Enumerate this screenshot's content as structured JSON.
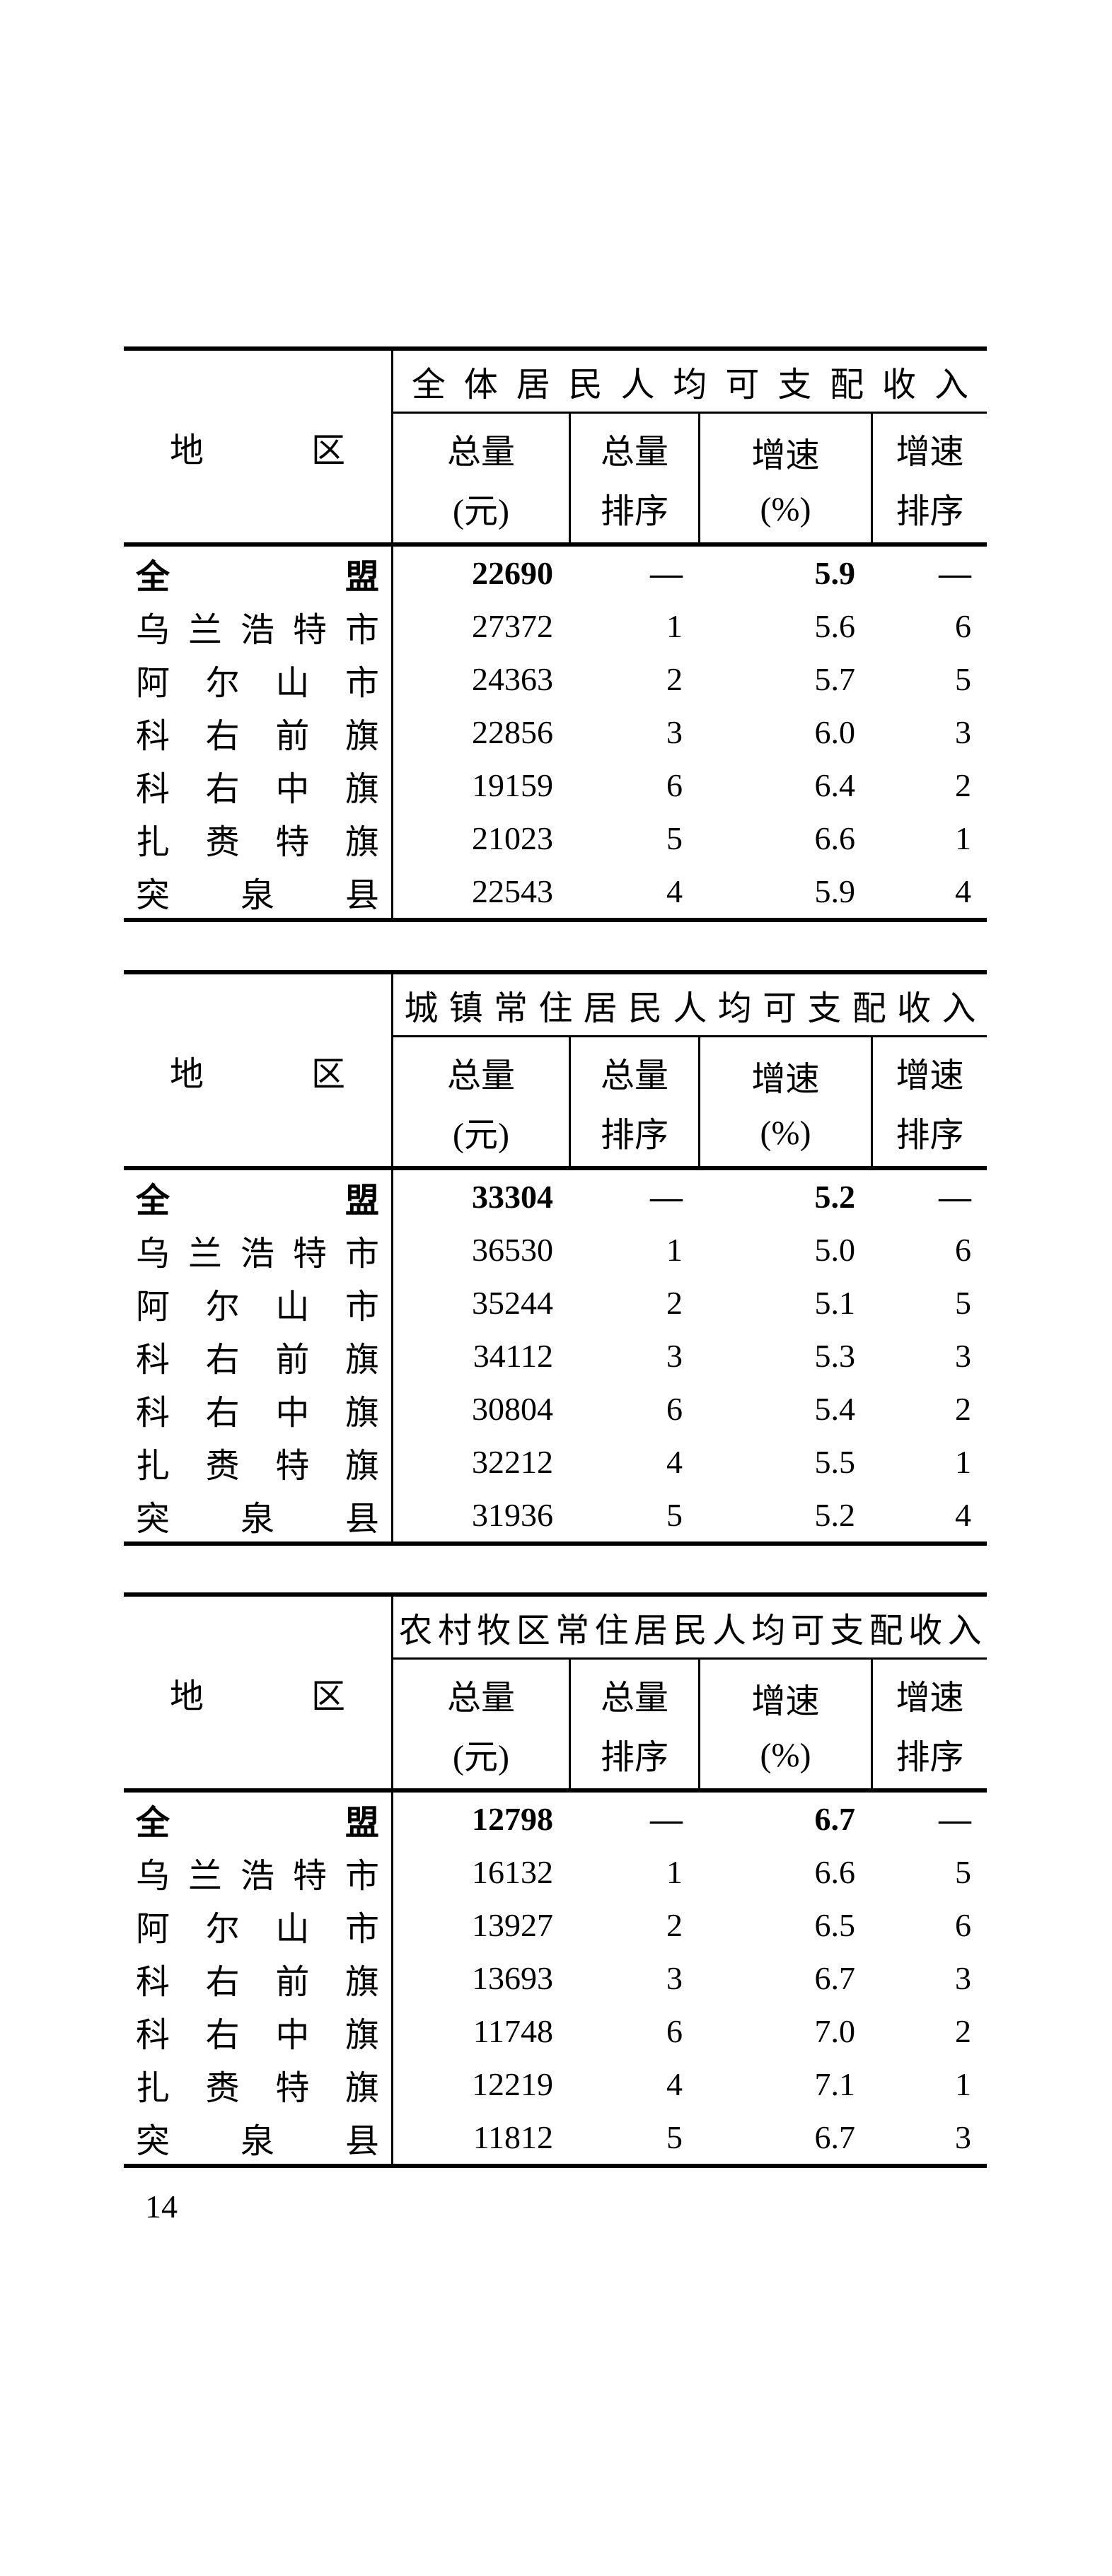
{
  "page": {
    "number": "14"
  },
  "header_labels": {
    "region": "地区",
    "total_line1": "总量",
    "total_line2": "(元)",
    "total_rank_line1": "总量",
    "total_rank_line2": "排序",
    "growth_line1": "增速",
    "growth_line2": "(%)",
    "growth_rank_line1": "增速",
    "growth_rank_line2": "排序"
  },
  "tables": [
    {
      "title": "全体居民人均可支配收入",
      "rows": [
        {
          "region": "全盟",
          "total": "22690",
          "total_rank": "—",
          "growth": "5.9",
          "growth_rank": "—"
        },
        {
          "region": "乌兰浩特市",
          "total": "27372",
          "total_rank": "1",
          "growth": "5.6",
          "growth_rank": "6"
        },
        {
          "region": "阿尔山市",
          "total": "24363",
          "total_rank": "2",
          "growth": "5.7",
          "growth_rank": "5"
        },
        {
          "region": "科右前旗",
          "total": "22856",
          "total_rank": "3",
          "growth": "6.0",
          "growth_rank": "3"
        },
        {
          "region": "科右中旗",
          "total": "19159",
          "total_rank": "6",
          "growth": "6.4",
          "growth_rank": "2"
        },
        {
          "region": "扎赉特旗",
          "total": "21023",
          "total_rank": "5",
          "growth": "6.6",
          "growth_rank": "1"
        },
        {
          "region": "突泉县",
          "total": "22543",
          "total_rank": "4",
          "growth": "5.9",
          "growth_rank": "4"
        }
      ]
    },
    {
      "title": "城镇常住居民人均可支配收入",
      "rows": [
        {
          "region": "全盟",
          "total": "33304",
          "total_rank": "—",
          "growth": "5.2",
          "growth_rank": "—"
        },
        {
          "region": "乌兰浩特市",
          "total": "36530",
          "total_rank": "1",
          "growth": "5.0",
          "growth_rank": "6"
        },
        {
          "region": "阿尔山市",
          "total": "35244",
          "total_rank": "2",
          "growth": "5.1",
          "growth_rank": "5"
        },
        {
          "region": "科右前旗",
          "total": "34112",
          "total_rank": "3",
          "growth": "5.3",
          "growth_rank": "3"
        },
        {
          "region": "科右中旗",
          "total": "30804",
          "total_rank": "6",
          "growth": "5.4",
          "growth_rank": "2"
        },
        {
          "region": "扎赉特旗",
          "total": "32212",
          "total_rank": "4",
          "growth": "5.5",
          "growth_rank": "1"
        },
        {
          "region": "突泉县",
          "total": "31936",
          "total_rank": "5",
          "growth": "5.2",
          "growth_rank": "4"
        }
      ]
    },
    {
      "title": "农村牧区常住居民人均可支配收入",
      "rows": [
        {
          "region": "全盟",
          "total": "12798",
          "total_rank": "—",
          "growth": "6.7",
          "growth_rank": "—"
        },
        {
          "region": "乌兰浩特市",
          "total": "16132",
          "total_rank": "1",
          "growth": "6.6",
          "growth_rank": "5"
        },
        {
          "region": "阿尔山市",
          "total": "13927",
          "total_rank": "2",
          "growth": "6.5",
          "growth_rank": "6"
        },
        {
          "region": "科右前旗",
          "total": "13693",
          "total_rank": "3",
          "growth": "6.7",
          "growth_rank": "3"
        },
        {
          "region": "科右中旗",
          "total": "11748",
          "total_rank": "6",
          "growth": "7.0",
          "growth_rank": "2"
        },
        {
          "region": "扎赉特旗",
          "total": "12219",
          "total_rank": "4",
          "growth": "7.1",
          "growth_rank": "1"
        },
        {
          "region": "突泉县",
          "total": "11812",
          "total_rank": "5",
          "growth": "6.7",
          "growth_rank": "3"
        }
      ]
    }
  ]
}
